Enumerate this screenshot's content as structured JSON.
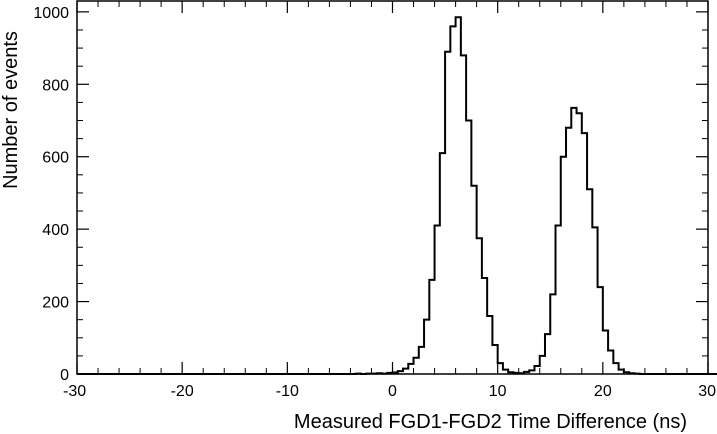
{
  "chart_data": {
    "type": "histogram",
    "title": "",
    "xlabel": "Measured FGD1-FGD2 Time Difference (ns)",
    "ylabel": "Number of events",
    "xlim": [
      -30,
      30
    ],
    "ylim": [
      0,
      1030
    ],
    "x_ticks": [
      "-30",
      "-20",
      "-10",
      "0",
      "10",
      "20",
      "30"
    ],
    "y_ticks": [
      "0",
      "200",
      "400",
      "600",
      "800",
      "1000"
    ],
    "bin_width": 0.5,
    "bins_start": -30,
    "values": [
      0,
      0,
      0,
      0,
      0,
      0,
      0,
      0,
      0,
      0,
      0,
      0,
      0,
      0,
      0,
      0,
      0,
      0,
      0,
      0,
      0,
      0,
      0,
      0,
      0,
      0,
      0,
      0,
      0,
      0,
      0,
      0,
      0,
      0,
      0,
      0,
      0,
      0,
      0,
      0,
      0,
      0,
      0,
      0,
      0,
      0,
      0,
      0,
      0,
      0,
      0,
      0,
      0,
      1,
      0,
      1,
      1,
      2,
      1,
      3,
      4,
      8,
      15,
      28,
      45,
      75,
      150,
      260,
      410,
      610,
      890,
      960,
      985,
      880,
      700,
      520,
      375,
      265,
      160,
      80,
      30,
      12,
      5,
      3,
      2,
      6,
      10,
      22,
      50,
      110,
      220,
      410,
      600,
      680,
      735,
      720,
      665,
      510,
      405,
      240,
      120,
      65,
      30,
      12,
      5,
      2,
      1,
      0,
      0,
      0,
      0,
      0,
      0,
      0,
      0,
      0,
      0,
      0,
      0,
      0,
      0,
      0,
      0,
      0,
      0,
      0,
      0,
      0,
      0,
      0
    ],
    "grid": false,
    "line_color": "#000000"
  }
}
